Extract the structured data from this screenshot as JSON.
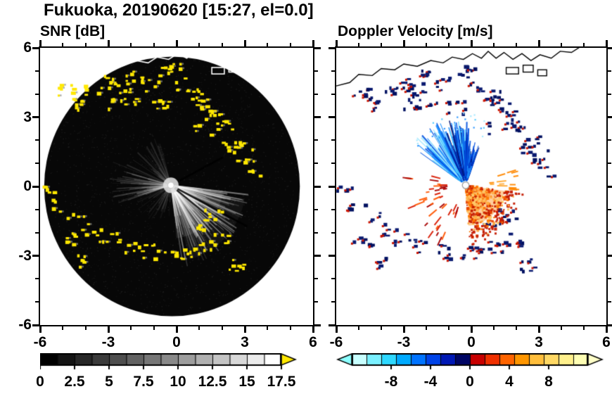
{
  "title": "Fukuoka, 20190620 [15:27, el=0.0]",
  "panels": {
    "snr": {
      "title": "SNR [dB]"
    },
    "velocity": {
      "title": "Doppler Velocity [m/s]"
    }
  },
  "chart_data": [
    {
      "id": "snr",
      "type": "radar_ppi",
      "title": "SNR [dB]",
      "xlim": [
        -6,
        6
      ],
      "ylim": [
        -6,
        6
      ],
      "xticks": [
        -6,
        -3,
        0,
        3,
        6
      ],
      "xtick_labels": [
        "-6",
        "-3",
        "0",
        "3",
        "6"
      ],
      "yticks": [
        6,
        3,
        0,
        -3,
        -6
      ],
      "ytick_labels": [
        "6",
        "3",
        "0",
        "-3",
        "-6"
      ],
      "minor_tick_step": 1,
      "radar_center": [
        -0.25,
        0.05
      ],
      "field": {
        "background": "#ffffff",
        "disk": {
          "cx": -0.2,
          "cy": 0.0,
          "radius": 5.62,
          "color": "#070707"
        },
        "noise": {
          "seed": 7,
          "count": 2600,
          "color": "#ffffff",
          "alpha": 0.09
        },
        "haze": [
          {
            "az0": 96,
            "az1": 174,
            "r": 2.3,
            "alpha": 0.1
          },
          {
            "az0": 100,
            "az1": 168,
            "r": 3.3,
            "alpha": 0.05
          }
        ],
        "beam_fans": [
          {
            "seed": 11,
            "az0": 96,
            "az1": 174,
            "count": 175,
            "r0": 0.15,
            "r1min": 1.0,
            "r1max": 3.6,
            "amin": 0.05,
            "amax": 0.42,
            "color": "#ffffff"
          },
          {
            "seed": 12,
            "az0": 250,
            "az1": 296,
            "count": 55,
            "r0": 0.15,
            "r1min": 0.8,
            "r1max": 2.8,
            "amin": 0.04,
            "amax": 0.2,
            "color": "#ffffff"
          },
          {
            "seed": 13,
            "az0": 302,
            "az1": 348,
            "count": 32,
            "r0": 0.15,
            "r1min": 0.6,
            "r1max": 2.2,
            "amin": 0.03,
            "amax": 0.12,
            "color": "#ffffff"
          },
          {
            "seed": 14,
            "az0": 180,
            "az1": 250,
            "count": 30,
            "r0": 0.15,
            "r1min": 0.5,
            "r1max": 1.8,
            "amin": 0.02,
            "amax": 0.1,
            "color": "#ffffff"
          }
        ],
        "dark_rays": [
          {
            "az": 118,
            "r1": 3.8
          },
          {
            "az": 129,
            "r1": 3.3
          },
          {
            "az": 62,
            "r1": 2.6
          }
        ],
        "core": {
          "radius": 0.34,
          "color": "#dddddd"
        },
        "echo_color": "#ffe800",
        "echo_fringe_color": "#8f8f8f",
        "coast_color": "#ffffff"
      },
      "colorbar": {
        "range": [
          0,
          17.5
        ],
        "values": [
          0,
          2.5,
          5,
          7.5,
          10,
          12.5,
          15,
          17.5
        ],
        "labels": [
          "0",
          "2.5",
          "5",
          "7.5",
          "10",
          "12.5",
          "15",
          "17.5"
        ],
        "cell_colors": [
          "#000000",
          "#141414",
          "#272727",
          "#3b3b3b",
          "#4e4e4e",
          "#626262",
          "#767676",
          "#898989",
          "#9d9d9d",
          "#b0b0b0",
          "#c4c4c4",
          "#d8d8d8",
          "#ebebeb",
          "#ffffff"
        ],
        "right_arrow_color": "#ffe800"
      }
    },
    {
      "id": "velocity",
      "type": "radar_ppi",
      "title": "Doppler Velocity [m/s]",
      "xlim": [
        -6,
        6
      ],
      "ylim": [
        -6,
        6
      ],
      "xticks": [
        -6,
        -3,
        0,
        3,
        6
      ],
      "xtick_labels": [
        "-6",
        "-3",
        "0",
        "3",
        "6"
      ],
      "yticks": [
        6,
        3,
        0,
        -3,
        -6
      ],
      "ytick_labels": [],
      "minor_tick_step": 1,
      "radar_center": [
        -0.25,
        0.05
      ],
      "field": {
        "background": "#ffffff",
        "coast_color": "#000000",
        "blue_fan": {
          "seed": 21,
          "az0": -55,
          "az1": 20,
          "count": 260,
          "r0": 0.18,
          "r1min": 0.5,
          "r1max": 3.0,
          "speck_count": 30,
          "colors": [
            "#9fe8ff",
            "#45c8ff",
            "#1e90ff",
            "#0050e0",
            "#0028b0",
            "#001070"
          ]
        },
        "warm_fan": {
          "seed": 22,
          "az0": 98,
          "az1": 176,
          "fill_r": 1.75,
          "fill_color": "#ff9428",
          "count": 430,
          "rmax": 2.35,
          "speckle_colors": [
            "#ff7700",
            "#ffad45",
            "#e84300",
            "#c41a00",
            "#ffc868"
          ],
          "red_color": "#c41a00",
          "red_count": 55,
          "red_rmax": 2.6
        },
        "west_streaks": {
          "seed": 23,
          "az0": 198,
          "az1": 286,
          "count": 38,
          "rmin": 0.8,
          "rmax": 2.5,
          "colors": [
            "#d81800",
            "#a80000",
            "#ff5500"
          ]
        },
        "east_streaks": {
          "seed": 24,
          "az0": 72,
          "az1": 96,
          "count": 14,
          "rmin": 0.9,
          "rmax": 2.2,
          "colors": [
            "#ff8800",
            "#ffaa33"
          ]
        },
        "center_dot": {
          "radius": 0.15,
          "color": "#ffffff",
          "edge_color": "#999999"
        },
        "echo_colors": [
          "#001060",
          "#0a1a70"
        ],
        "echo_accent_color": "#cc1400"
      },
      "colorbar": {
        "range": [
          -12,
          12
        ],
        "values": [
          -8,
          -4,
          0,
          4,
          8
        ],
        "labels": [
          "-8",
          "-4",
          "0",
          "4",
          "8"
        ],
        "cell_colors": [
          "#c8ffff",
          "#7af0ff",
          "#2ed8ff",
          "#00aaff",
          "#0073ff",
          "#0043e8",
          "#0018b4",
          "#000564",
          "#c80000",
          "#f03000",
          "#ff6400",
          "#ff9600",
          "#ffbe3c",
          "#ffd864",
          "#fff08c",
          "#ffffb4"
        ],
        "left_arrow_color": "#8cffff",
        "right_arrow_color": "#ffffc8"
      }
    }
  ],
  "shared": {
    "coastline": [
      [
        -6,
        4.35
      ],
      [
        -5.4,
        4.5
      ],
      [
        -5.0,
        4.85
      ],
      [
        -4.4,
        4.8
      ],
      [
        -4.0,
        5.1
      ],
      [
        -3.4,
        5.05
      ],
      [
        -3.0,
        5.3
      ],
      [
        -2.4,
        5.2
      ],
      [
        -1.8,
        5.45
      ],
      [
        -1.25,
        5.35
      ],
      [
        -0.85,
        5.6
      ],
      [
        -0.35,
        5.5
      ],
      [
        0.05,
        5.75
      ],
      [
        0.45,
        5.55
      ],
      [
        0.75,
        5.85
      ],
      [
        1.1,
        5.55
      ],
      [
        1.45,
        5.8
      ],
      [
        1.85,
        5.5
      ],
      [
        2.25,
        5.75
      ],
      [
        2.65,
        5.45
      ],
      [
        3.05,
        5.7
      ],
      [
        3.55,
        5.55
      ],
      [
        3.95,
        5.85
      ],
      [
        4.45,
        5.8
      ],
      [
        4.85,
        6.05
      ]
    ],
    "port_rects": [
      [
        1.55,
        5.15,
        0.55,
        0.28
      ],
      [
        2.3,
        5.25,
        0.45,
        0.3
      ],
      [
        2.95,
        5.05,
        0.4,
        0.26
      ]
    ],
    "echo_clusters": [
      [
        -3.6,
        4.1
      ],
      [
        -3.0,
        4.5
      ],
      [
        -2.4,
        4.2
      ],
      [
        -1.8,
        4.7
      ],
      [
        -1.1,
        4.4
      ],
      [
        -0.4,
        4.9
      ],
      [
        0.2,
        5.1
      ],
      [
        0.4,
        4.4
      ],
      [
        0.9,
        4.0
      ],
      [
        -2.6,
        3.6
      ],
      [
        -1.5,
        3.7
      ],
      [
        -0.6,
        3.4
      ],
      [
        1.3,
        3.5
      ],
      [
        1.7,
        3.0
      ],
      [
        2.2,
        2.6
      ],
      [
        1.2,
        2.5
      ],
      [
        2.7,
        2.0
      ],
      [
        3.1,
        1.3
      ],
      [
        3.4,
        0.6
      ],
      [
        2.4,
        1.6
      ],
      [
        -4.4,
        3.6
      ],
      [
        -4.9,
        4.1
      ],
      [
        -5.6,
        -0.2
      ],
      [
        -5.1,
        -0.9
      ],
      [
        -4.4,
        -1.4
      ],
      [
        -3.7,
        -1.9
      ],
      [
        -4.8,
        -2.3
      ],
      [
        -3.0,
        -2.3
      ],
      [
        -2.2,
        -2.6
      ],
      [
        -1.3,
        -2.8
      ],
      [
        -0.5,
        -2.95
      ],
      [
        0.4,
        -2.9
      ],
      [
        1.2,
        -2.65
      ],
      [
        1.9,
        -2.3
      ],
      [
        -3.9,
        -3.3
      ],
      [
        0.9,
        -1.8
      ],
      [
        1.6,
        -1.3
      ],
      [
        2.6,
        -3.4
      ]
    ]
  }
}
